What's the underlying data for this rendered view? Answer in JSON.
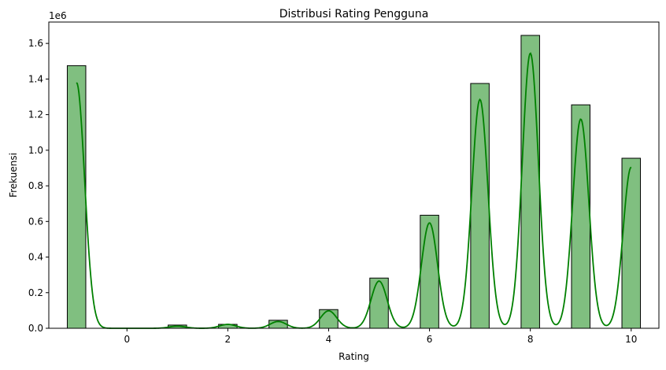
{
  "chart_data": {
    "type": "bar",
    "title": "Distribusi Rating Pengguna",
    "xlabel": "Rating",
    "ylabel": "Frekuensi",
    "y_scale_label": "1e6",
    "xlim": [
      -1.55,
      10.55
    ],
    "ylim": [
      0,
      1.72
    ],
    "x_ticks": [
      0,
      2,
      4,
      6,
      8,
      10
    ],
    "y_ticks": [
      0.0,
      0.2,
      0.4,
      0.6,
      0.8,
      1.0,
      1.2,
      1.4,
      1.6
    ],
    "y_tick_labels": [
      "0.0",
      "0.2",
      "0.4",
      "0.6",
      "0.8",
      "1.0",
      "1.2",
      "1.4",
      "1.6"
    ],
    "bin_width": 0.367,
    "bins": [
      {
        "x": -1,
        "value": 1.475
      },
      {
        "x": 1,
        "value": 0.018
      },
      {
        "x": 2,
        "value": 0.022
      },
      {
        "x": 3,
        "value": 0.045
      },
      {
        "x": 4,
        "value": 0.105
      },
      {
        "x": 5,
        "value": 0.282
      },
      {
        "x": 6,
        "value": 0.635
      },
      {
        "x": 7,
        "value": 1.375
      },
      {
        "x": 8,
        "value": 1.645
      },
      {
        "x": 9,
        "value": 1.255
      },
      {
        "x": 10,
        "value": 0.955
      }
    ],
    "kde_peaks": [
      {
        "x": -1,
        "value": 1.38
      },
      {
        "x": 1,
        "value": 0.012
      },
      {
        "x": 2,
        "value": 0.022
      },
      {
        "x": 3,
        "value": 0.038
      },
      {
        "x": 4,
        "value": 0.098
      },
      {
        "x": 5,
        "value": 0.265
      },
      {
        "x": 6,
        "value": 0.592
      },
      {
        "x": 7,
        "value": 1.285
      },
      {
        "x": 8,
        "value": 1.545
      },
      {
        "x": 9,
        "value": 1.175
      },
      {
        "x": 10,
        "value": 0.905
      }
    ],
    "bar_color": "#80bf80",
    "bar_edge_color": "#000000",
    "kde_color": "#008000",
    "grid": false,
    "legend": "none"
  }
}
